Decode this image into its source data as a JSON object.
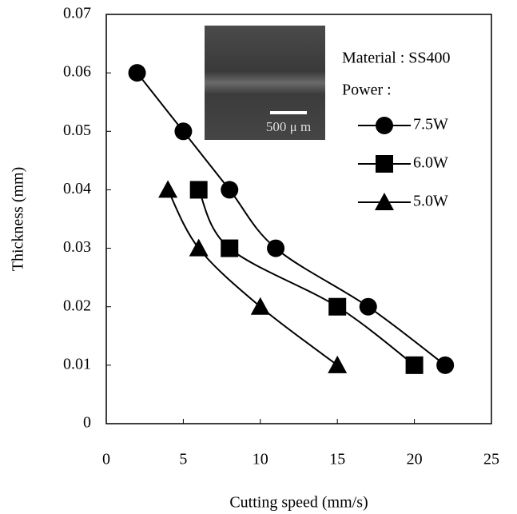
{
  "chart_data": {
    "type": "line",
    "x_label": "Cutting speed (mm/s)",
    "y_label": "Thickness (mm)",
    "xlim": [
      0,
      25
    ],
    "xticks": [
      0,
      5,
      10,
      15,
      20,
      25
    ],
    "ylim": [
      0,
      0.07
    ],
    "yticks": [
      0,
      0.01,
      0.02,
      0.03,
      0.04,
      0.05,
      0.06,
      0.07
    ],
    "legend_title_1": "Material : SS400",
    "legend_title_2": "Power :",
    "inset_label": "500 μ m",
    "legend": "upper right",
    "grid": false,
    "series": [
      {
        "name": "7.5W",
        "color": "#000000",
        "marker": "circle",
        "x": [
          2,
          5,
          8,
          11,
          17,
          22
        ],
        "values": [
          0.06,
          0.05,
          0.04,
          0.03,
          0.02,
          0.01
        ]
      },
      {
        "name": "6.0W",
        "color": "#000000",
        "marker": "square",
        "x": [
          6,
          8,
          15,
          20
        ],
        "values": [
          0.04,
          0.03,
          0.02,
          0.01
        ]
      },
      {
        "name": "5.0W",
        "color": "#000000",
        "marker": "triangle",
        "x": [
          4,
          6,
          10,
          15
        ],
        "values": [
          0.04,
          0.03,
          0.02,
          0.01
        ]
      }
    ]
  }
}
